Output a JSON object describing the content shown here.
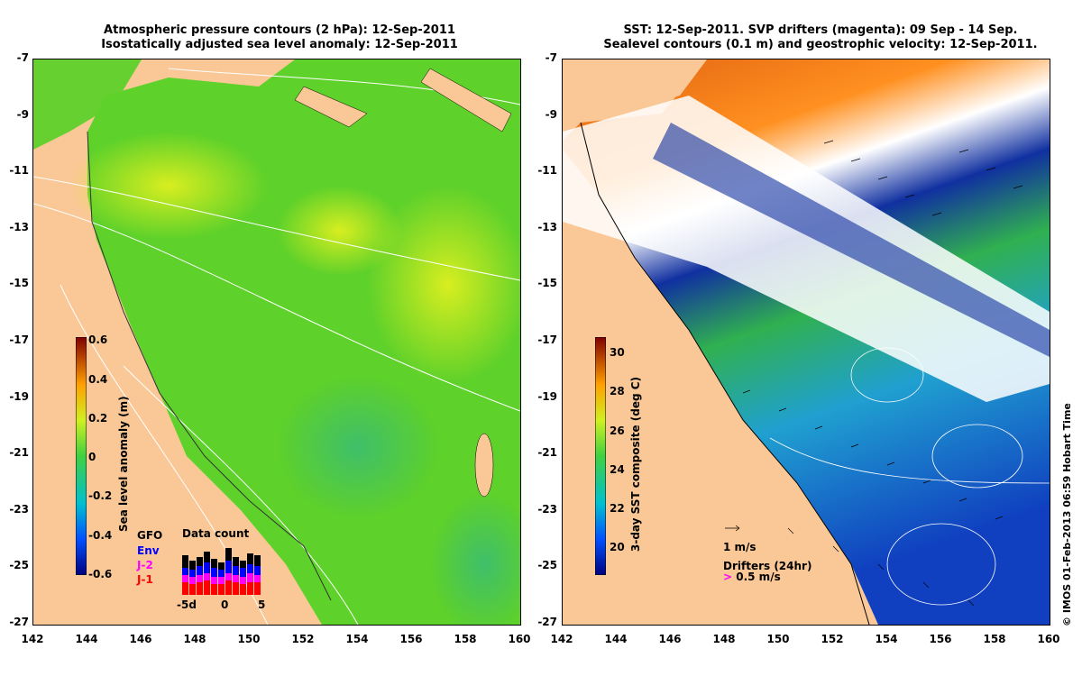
{
  "left_panel": {
    "title_line1": "Atmospheric pressure contours (2 hPa): 12-Sep-2011",
    "title_line2": "Isostatically adjusted sea level anomaly: 12-Sep-2011",
    "colorbar_label": "Sea level anomaly (m)",
    "colorbar_ticks": [
      "0.6",
      "0.4",
      "0.2",
      "0",
      "-0.2",
      "-0.4",
      "-0.6"
    ],
    "data_count": {
      "title": "Data count",
      "satellites": [
        "Env",
        "J-2",
        "J-1"
      ],
      "overlapping_label": "GFO",
      "sat_colors": {
        "Env": "#0000ff",
        "J-2": "#ff00ff",
        "J-1": "#ff0000"
      },
      "x_ticks": [
        "-5d",
        "0",
        "5"
      ]
    }
  },
  "right_panel": {
    "title_line1": "SST: 12-Sep-2011. SVP drifters (magenta): 09 Sep - 14 Sep.",
    "title_line2": "Sealevel contours (0.1 m) and geostrophic velocity: 12-Sep-2011.",
    "colorbar_label": "3-day SST composite (deg C)",
    "colorbar_ticks": [
      "30",
      "28",
      "26",
      "24",
      "22",
      "20"
    ],
    "velocity_scale_label": "1 m/s",
    "drifters_label": "Drifters (24hr)",
    "drifter_scale_label": "0.5 m/s"
  },
  "axes": {
    "y_ticks": [
      "-7",
      "-9",
      "-11",
      "-13",
      "-15",
      "-17",
      "-19",
      "-21",
      "-23",
      "-25",
      "-27"
    ],
    "x_ticks": [
      "142",
      "144",
      "146",
      "148",
      "150",
      "152",
      "154",
      "156",
      "158",
      "160"
    ]
  },
  "copyright": "© IMOS 01-Feb-2013 06:59 Hobart Time",
  "colors": {
    "land": "#fac896",
    "ocean_green": "#5ed12a"
  }
}
